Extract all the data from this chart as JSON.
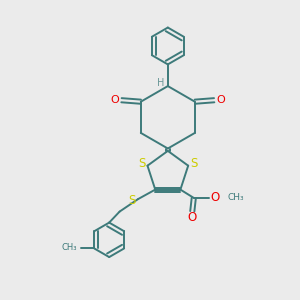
{
  "bg_color": "#ebebeb",
  "bond_color": "#3d7a7a",
  "S_color": "#cccc00",
  "O_color": "#ee0000",
  "H_color": "#6a9898",
  "line_width": 1.4,
  "dbl_sep": 0.07,
  "figsize": [
    3.0,
    3.0
  ],
  "dpi": 100,
  "xlim": [
    0,
    10
  ],
  "ylim": [
    0,
    10
  ]
}
